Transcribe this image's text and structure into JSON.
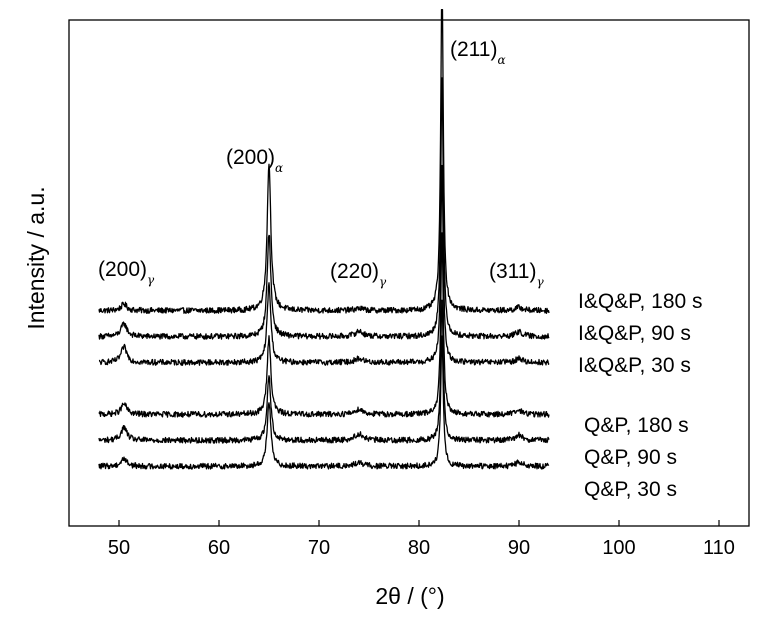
{
  "chart_data": {
    "type": "line",
    "xlabel": "2θ / (°)",
    "ylabel": "Intensity / a.u.",
    "xlim": [
      45,
      113
    ],
    "x_ticks": [
      50,
      60,
      70,
      80,
      90,
      100,
      110
    ],
    "x_range_measured": [
      48,
      93
    ],
    "y_ticks": false,
    "grid": false,
    "legend": "labels at right end of each trace",
    "peak_annotations": [
      {
        "text": "(200)",
        "phase": "γ",
        "x": 50.5
      },
      {
        "text": "(200)",
        "phase": "α",
        "x": 65
      },
      {
        "text": "(220)",
        "phase": "γ",
        "x": 74
      },
      {
        "text": "(211)",
        "phase": "α",
        "x": 82.3
      },
      {
        "text": "(311)",
        "phase": "γ",
        "x": 90
      }
    ],
    "series": [
      {
        "name": "I&Q&P, 180 s",
        "baseline": 8.3,
        "peaks": [
          {
            "x": 50.5,
            "h": 0.25
          },
          {
            "x": 65.0,
            "h": 5.7
          },
          {
            "x": 74.0,
            "h": 0.08
          },
          {
            "x": 82.3,
            "h": 13.0
          },
          {
            "x": 90.0,
            "h": 0.12
          }
        ]
      },
      {
        "name": "I&Q&P, 90 s",
        "baseline": 7.3,
        "peaks": [
          {
            "x": 50.5,
            "h": 0.5
          },
          {
            "x": 65.0,
            "h": 4.0
          },
          {
            "x": 74.0,
            "h": 0.2
          },
          {
            "x": 82.3,
            "h": 10.0
          },
          {
            "x": 90.0,
            "h": 0.18
          }
        ]
      },
      {
        "name": "I&Q&P, 30 s",
        "baseline": 6.3,
        "peaks": [
          {
            "x": 50.5,
            "h": 0.6
          },
          {
            "x": 65.0,
            "h": 3.0
          },
          {
            "x": 74.0,
            "h": 0.15
          },
          {
            "x": 82.3,
            "h": 7.5
          },
          {
            "x": 90.0,
            "h": 0.15
          }
        ]
      },
      {
        "name": "Q&P, 180 s",
        "baseline": 4.3,
        "peaks": [
          {
            "x": 50.5,
            "h": 0.4
          },
          {
            "x": 65.0,
            "h": 3.0
          },
          {
            "x": 74.0,
            "h": 0.2
          },
          {
            "x": 82.3,
            "h": 7.0
          },
          {
            "x": 90.0,
            "h": 0.15
          }
        ]
      },
      {
        "name": "Q&P, 90 s",
        "baseline": 3.3,
        "peaks": [
          {
            "x": 50.5,
            "h": 0.5
          },
          {
            "x": 65.0,
            "h": 2.5
          },
          {
            "x": 74.0,
            "h": 0.25
          },
          {
            "x": 82.3,
            "h": 5.5
          },
          {
            "x": 90.0,
            "h": 0.2
          }
        ]
      },
      {
        "name": "Q&P, 30 s",
        "baseline": 2.3,
        "peaks": [
          {
            "x": 50.5,
            "h": 0.3
          },
          {
            "x": 65.0,
            "h": 2.5
          },
          {
            "x": 74.0,
            "h": 0.15
          },
          {
            "x": 82.3,
            "h": 5.0
          },
          {
            "x": 90.0,
            "h": 0.15
          }
        ]
      }
    ]
  }
}
